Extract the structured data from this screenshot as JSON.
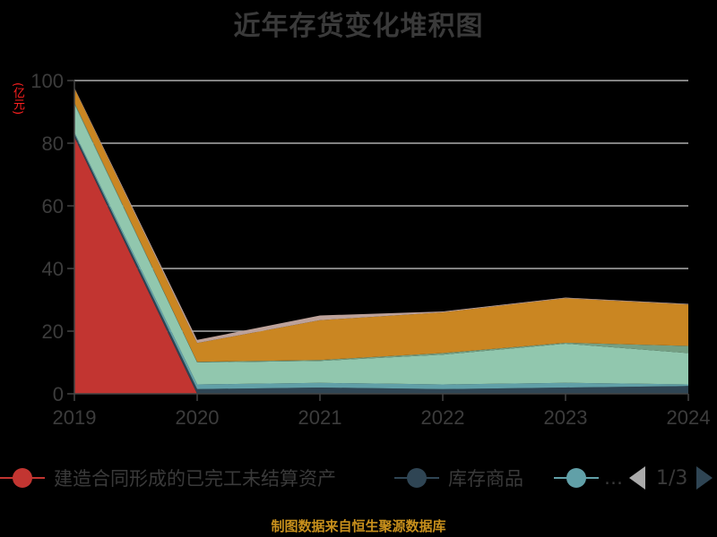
{
  "title": "近年存货变化堆积图",
  "y_unit": "(亿元)",
  "footer": "制图数据来自恒生聚源数据库",
  "legend": {
    "items": [
      {
        "label": "建造合同形成的已完工未结算资产",
        "color": "#c23531"
      },
      {
        "label": "库存商品",
        "color": "#2f4554"
      },
      {
        "label": "…",
        "color": "#61a0a8"
      }
    ],
    "page": "1/3"
  },
  "colors": {
    "background": "#000000",
    "title": "#3a3a3a",
    "axis_text": "#3c3c3c",
    "grid": "#cccccc",
    "unit": "#ff2020",
    "footer": "#c8901c"
  },
  "chart_data": {
    "type": "area",
    "stacked": true,
    "title": "近年存货变化堆积图",
    "xlabel": "",
    "ylabel": "(亿元)",
    "ylim": [
      0,
      100
    ],
    "yticks": [
      0,
      20,
      40,
      60,
      80,
      100
    ],
    "grid": true,
    "legend_position": "bottom",
    "categories": [
      "2019",
      "2020",
      "2021",
      "2022",
      "2023",
      "2024"
    ],
    "series": [
      {
        "name": "建造合同形成的已完工未结算资产",
        "color": "#c23531",
        "values": [
          82,
          0,
          0,
          0,
          0,
          0
        ]
      },
      {
        "name": "库存商品",
        "color": "#2f4554",
        "values": [
          1,
          1.5,
          2,
          1.5,
          2,
          2.5
        ]
      },
      {
        "name": "",
        "color": "#61a0a8",
        "values": [
          0.5,
          1.5,
          1.5,
          1.5,
          1.5,
          0.5
        ]
      },
      {
        "name": "",
        "color": "#91c7ae",
        "values": [
          9,
          7,
          7,
          9.5,
          12.5,
          10
        ]
      },
      {
        "name": "",
        "color": "#749f83",
        "values": [
          0.5,
          0.2,
          0.3,
          0.5,
          0.3,
          2.3
        ]
      },
      {
        "name": "",
        "color": "#ca8622",
        "values": [
          4.5,
          6,
          12.7,
          13,
          14.2,
          13.2
        ]
      },
      {
        "name": "",
        "color": "#bda29a",
        "values": [
          0.2,
          1,
          1.5,
          0.3,
          0.2,
          0.2
        ]
      }
    ]
  }
}
